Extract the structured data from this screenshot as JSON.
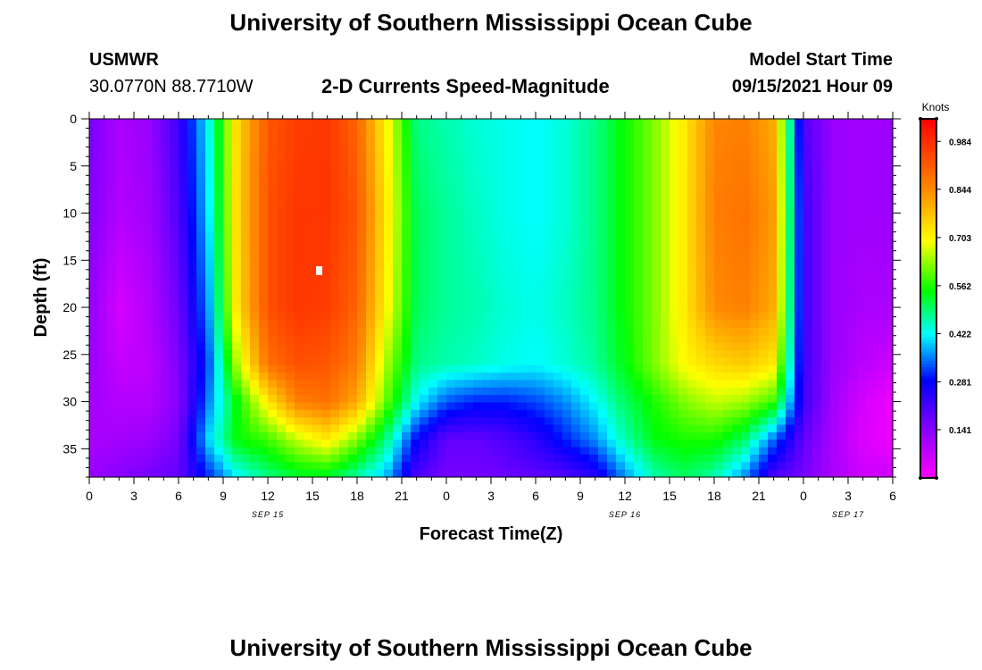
{
  "page": {
    "title_top": "University of Southern Mississippi Ocean Cube",
    "title_bottom": "University of Southern Mississippi Ocean Cube",
    "station": "USMWR",
    "location": "30.0770N  88.7710W",
    "model_start_label": "Model Start Time",
    "model_start_value": "09/15/2021 Hour 09"
  },
  "chart_data": {
    "type": "heatmap",
    "title": "2-D Currents Speed-Magnitude",
    "xlabel": "Forecast Time(Z)",
    "ylabel": "Depth (ft)",
    "x_range_hours": [
      0,
      54
    ],
    "y_range_ft": [
      0,
      38
    ],
    "y_inverted": true,
    "x_tick_labels": [
      "0",
      "3",
      "6",
      "9",
      "12",
      "15",
      "18",
      "21",
      "0",
      "3",
      "6",
      "9",
      "12",
      "15",
      "18",
      "21",
      "0",
      "3",
      "6"
    ],
    "y_tick_labels": [
      "0",
      "5",
      "10",
      "15",
      "20",
      "25",
      "30",
      "35"
    ],
    "date_labels": [
      {
        "hour": 12,
        "label": "SEP 15"
      },
      {
        "hour": 36,
        "label": "SEP 16"
      },
      {
        "hour": 51,
        "label": "SEP 17"
      }
    ],
    "colorbar": {
      "label": "Knots",
      "range": [
        0,
        1.05
      ],
      "ticks": [
        "0.141",
        "0.281",
        "0.422",
        "0.562",
        "0.703",
        "0.844",
        "0.984"
      ],
      "tick_values": [
        0.141,
        0.281,
        0.422,
        0.562,
        0.703,
        0.844,
        0.984
      ]
    },
    "speed_grid_knots": {
      "x_hours": [
        0,
        2,
        4,
        6,
        8,
        10,
        12,
        14,
        16,
        18,
        20,
        22,
        24,
        26,
        28,
        30,
        32,
        34,
        36,
        38,
        40,
        42,
        44,
        46,
        48,
        50,
        52,
        54
      ],
      "y_ft": [
        0,
        10,
        20,
        26,
        30,
        34,
        38
      ],
      "values": [
        [
          0.16,
          0.1,
          0.12,
          0.22,
          0.42,
          0.75,
          0.92,
          0.96,
          0.97,
          0.9,
          0.7,
          0.48,
          0.46,
          0.44,
          0.43,
          0.42,
          0.44,
          0.48,
          0.55,
          0.62,
          0.72,
          0.85,
          0.86,
          0.8,
          0.2,
          0.12,
          0.11,
          0.12
        ],
        [
          0.15,
          0.09,
          0.11,
          0.2,
          0.4,
          0.75,
          0.93,
          0.97,
          0.97,
          0.92,
          0.72,
          0.5,
          0.47,
          0.45,
          0.43,
          0.42,
          0.44,
          0.48,
          0.55,
          0.62,
          0.72,
          0.86,
          0.88,
          0.82,
          0.22,
          0.12,
          0.11,
          0.12
        ],
        [
          0.13,
          0.05,
          0.09,
          0.17,
          0.36,
          0.74,
          0.93,
          0.97,
          0.96,
          0.9,
          0.7,
          0.5,
          0.47,
          0.46,
          0.44,
          0.43,
          0.45,
          0.48,
          0.55,
          0.62,
          0.72,
          0.84,
          0.86,
          0.8,
          0.22,
          0.12,
          0.1,
          0.1
        ],
        [
          0.12,
          0.07,
          0.08,
          0.15,
          0.32,
          0.66,
          0.88,
          0.93,
          0.92,
          0.86,
          0.64,
          0.48,
          0.46,
          0.45,
          0.43,
          0.42,
          0.44,
          0.47,
          0.54,
          0.62,
          0.7,
          0.74,
          0.76,
          0.72,
          0.22,
          0.12,
          0.08,
          0.06
        ],
        [
          0.11,
          0.09,
          0.09,
          0.14,
          0.35,
          0.55,
          0.72,
          0.86,
          0.88,
          0.8,
          0.6,
          0.42,
          0.33,
          0.3,
          0.3,
          0.32,
          0.36,
          0.42,
          0.5,
          0.56,
          0.62,
          0.66,
          0.64,
          0.58,
          0.22,
          0.11,
          0.05,
          0.02
        ],
        [
          0.1,
          0.11,
          0.12,
          0.16,
          0.4,
          0.55,
          0.58,
          0.66,
          0.72,
          0.62,
          0.48,
          0.28,
          0.18,
          0.18,
          0.2,
          0.24,
          0.3,
          0.36,
          0.46,
          0.54,
          0.56,
          0.56,
          0.5,
          0.34,
          0.18,
          0.1,
          0.04,
          0.02
        ],
        [
          0.12,
          0.14,
          0.16,
          0.18,
          0.3,
          0.42,
          0.48,
          0.52,
          0.52,
          0.46,
          0.38,
          0.2,
          0.16,
          0.16,
          0.17,
          0.18,
          0.2,
          0.24,
          0.36,
          0.46,
          0.5,
          0.46,
          0.36,
          0.2,
          0.16,
          0.1,
          0.06,
          0.06
        ]
      ]
    }
  }
}
